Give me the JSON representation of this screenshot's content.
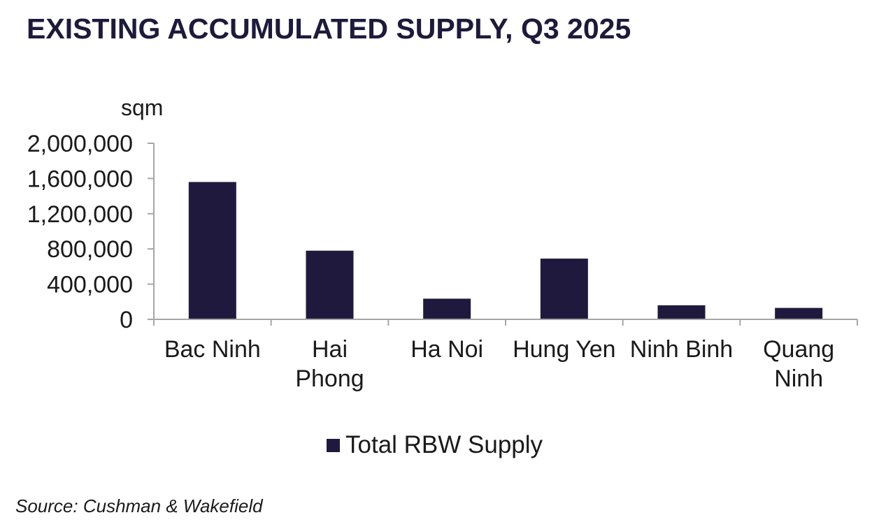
{
  "title": "EXISTING ACCUMULATED SUPPLY, Q3 2025",
  "source": "Source: Cushman & Wakefield",
  "colors": {
    "bar": "#1f1a3d",
    "axis": "#a6a6a6",
    "title": "#1e1a3c"
  },
  "chart_data": {
    "type": "bar",
    "title": "EXISTING ACCUMULATED SUPPLY, Q3 2025",
    "ylabel": "sqm",
    "xlabel": "",
    "ylim": [
      0,
      2000000
    ],
    "yticks": [
      0,
      400000,
      800000,
      1200000,
      1600000,
      2000000
    ],
    "ytick_labels": [
      "0",
      "400,000",
      "800,000",
      "1,200,000",
      "1,600,000",
      "2,000,000"
    ],
    "categories": [
      [
        "Bac Ninh"
      ],
      [
        "Hai",
        "Phong"
      ],
      [
        "Ha Noi"
      ],
      [
        "Hung Yen"
      ],
      [
        "Ninh Binh"
      ],
      [
        "Quang",
        "Ninh"
      ]
    ],
    "series": [
      {
        "name": "Total RBW Supply",
        "values": [
          1560000,
          780000,
          235000,
          690000,
          160000,
          130000
        ]
      }
    ],
    "legend": "bottom-center",
    "grid": false
  }
}
